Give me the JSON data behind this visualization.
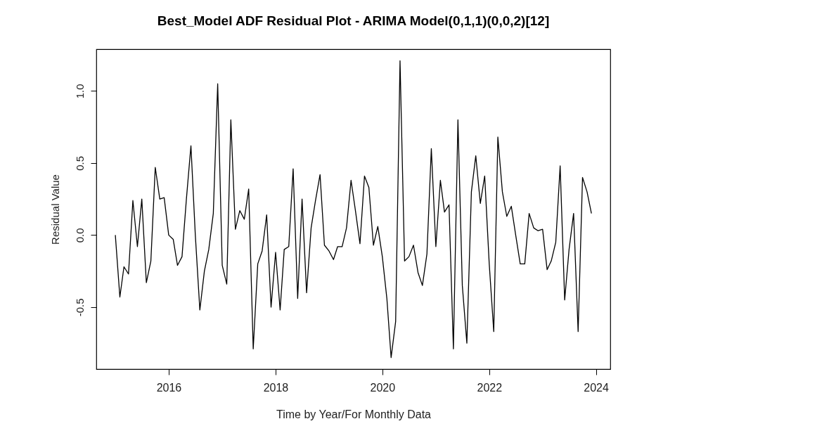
{
  "chart_data": {
    "type": "line",
    "title": "Best_Model ADF Residual Plot - ARIMA Model(0,1,1)(0,0,2)[12]",
    "xlabel": "Time by Year/For Monthly Data",
    "ylabel": "Residual Value",
    "x": [
      "2015-01",
      "2015-02",
      "2015-03",
      "2015-04",
      "2015-05",
      "2015-06",
      "2015-07",
      "2015-08",
      "2015-09",
      "2015-10",
      "2015-11",
      "2015-12",
      "2016-01",
      "2016-02",
      "2016-03",
      "2016-04",
      "2016-05",
      "2016-06",
      "2016-07",
      "2016-08",
      "2016-09",
      "2016-10",
      "2016-11",
      "2016-12",
      "2017-01",
      "2017-02",
      "2017-03",
      "2017-04",
      "2017-05",
      "2017-06",
      "2017-07",
      "2017-08",
      "2017-09",
      "2017-10",
      "2017-11",
      "2017-12",
      "2018-01",
      "2018-02",
      "2018-03",
      "2018-04",
      "2018-05",
      "2018-06",
      "2018-07",
      "2018-08",
      "2018-09",
      "2018-10",
      "2018-11",
      "2018-12",
      "2019-01",
      "2019-02",
      "2019-03",
      "2019-04",
      "2019-05",
      "2019-06",
      "2019-07",
      "2019-08",
      "2019-09",
      "2019-10",
      "2019-11",
      "2019-12",
      "2020-01",
      "2020-02",
      "2020-03",
      "2020-04",
      "2020-05",
      "2020-06",
      "2020-07",
      "2020-08",
      "2020-09",
      "2020-10",
      "2020-11",
      "2020-12",
      "2021-01",
      "2021-02",
      "2021-03",
      "2021-04",
      "2021-05",
      "2021-06",
      "2021-07",
      "2021-08",
      "2021-09",
      "2021-10",
      "2021-11",
      "2021-12",
      "2022-01",
      "2022-02",
      "2022-03",
      "2022-04",
      "2022-05",
      "2022-06",
      "2022-07",
      "2022-08",
      "2022-09",
      "2022-10",
      "2022-11",
      "2022-12",
      "2023-01",
      "2023-02",
      "2023-03",
      "2023-04",
      "2023-05",
      "2023-06",
      "2023-07",
      "2023-08",
      "2023-09",
      "2023-10",
      "2023-11",
      "2023-12"
    ],
    "series": [
      {
        "color": "#000000",
        "values": [
          0.0,
          -0.43,
          -0.22,
          -0.27,
          0.24,
          -0.08,
          0.25,
          -0.33,
          -0.18,
          0.47,
          0.25,
          0.26,
          0.0,
          -0.03,
          -0.21,
          -0.15,
          0.25,
          0.62,
          0.0,
          -0.52,
          -0.25,
          -0.1,
          0.15,
          1.05,
          -0.21,
          -0.34,
          0.8,
          0.04,
          0.17,
          0.11,
          0.32,
          -0.79,
          -0.2,
          -0.11,
          0.14,
          -0.5,
          -0.12,
          -0.52,
          -0.1,
          -0.08,
          0.46,
          -0.44,
          0.25,
          -0.4,
          0.05,
          0.24,
          0.42,
          -0.07,
          -0.11,
          -0.17,
          -0.08,
          -0.08,
          0.05,
          0.38,
          0.17,
          -0.06,
          0.41,
          0.33,
          -0.07,
          0.06,
          -0.15,
          -0.44,
          -0.85,
          -0.6,
          1.21,
          -0.18,
          -0.15,
          -0.07,
          -0.26,
          -0.35,
          -0.13,
          0.6,
          -0.08,
          0.38,
          0.16,
          0.21,
          -0.79,
          0.8,
          -0.35,
          -0.75,
          0.3,
          0.55,
          0.22,
          0.41,
          -0.2,
          -0.67,
          0.68,
          0.3,
          0.13,
          0.2,
          0.0,
          -0.2,
          -0.2,
          0.15,
          0.05,
          0.03,
          0.04,
          -0.24,
          -0.18,
          -0.05,
          0.48,
          -0.45,
          -0.1,
          0.15,
          -0.67,
          0.4,
          0.3,
          0.15
        ]
      }
    ],
    "xlim": [
      "2014-08-24",
      "2024-04-08"
    ],
    "xticks": [
      "2016",
      "2018",
      "2020",
      "2022",
      "2024"
    ],
    "ylim": [
      -0.93,
      1.29
    ],
    "yticks": [
      {
        "value": -0.5,
        "label": "-0.5"
      },
      {
        "value": 0,
        "label": "0.0"
      },
      {
        "value": 0.5,
        "label": "0.5"
      },
      {
        "value": 1,
        "label": "1.0"
      }
    ]
  }
}
